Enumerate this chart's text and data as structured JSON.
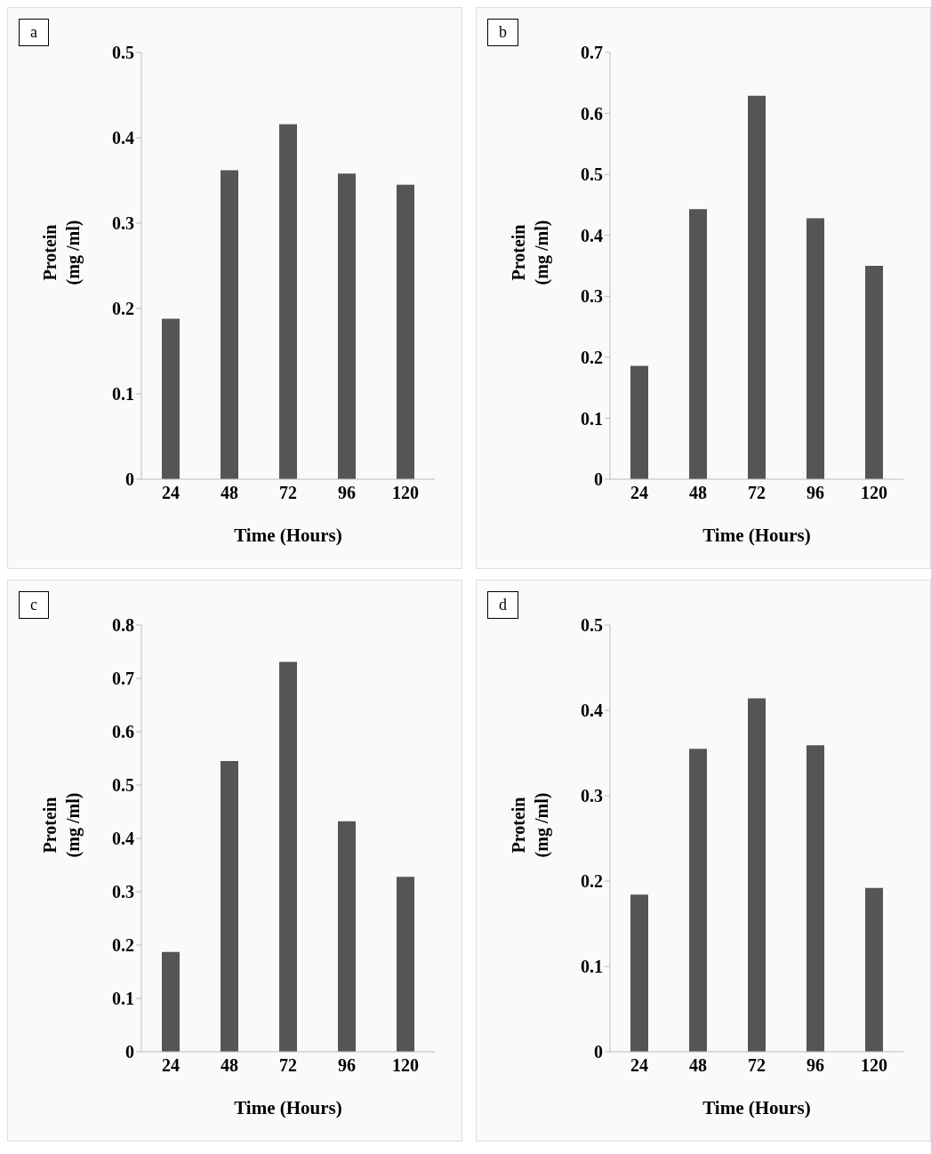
{
  "chart_data": [
    {
      "type": "bar",
      "title": "a",
      "xlabel": "Time (Hours)",
      "ylabel": "Protein (mg /ml)",
      "categories": [
        "24",
        "48",
        "72",
        "96",
        "120"
      ],
      "values": [
        0.188,
        0.362,
        0.416,
        0.358,
        0.345
      ],
      "color": "#555555",
      "ylim": [
        0,
        0.5
      ],
      "yticks": [
        0,
        0.1,
        0.2,
        0.3,
        0.4,
        0.5
      ]
    },
    {
      "type": "bar",
      "title": "b",
      "xlabel": "Time (Hours)",
      "ylabel": "Protein (mg /ml)",
      "categories": [
        "24",
        "48",
        "72",
        "96",
        "120"
      ],
      "values": [
        0.186,
        0.443,
        0.629,
        0.428,
        0.35
      ],
      "color": "#555555",
      "ylim": [
        0,
        0.7
      ],
      "yticks": [
        0,
        0.1,
        0.2,
        0.3,
        0.4,
        0.5,
        0.6,
        0.7
      ]
    },
    {
      "type": "bar",
      "title": "c",
      "xlabel": "Time (Hours)",
      "ylabel": "Protein (mg /ml)",
      "categories": [
        "24",
        "48",
        "72",
        "96",
        "120"
      ],
      "values": [
        0.187,
        0.545,
        0.731,
        0.432,
        0.328
      ],
      "color": "#555555",
      "ylim": [
        0,
        0.8
      ],
      "yticks": [
        0,
        0.1,
        0.2,
        0.3,
        0.4,
        0.5,
        0.6,
        0.7,
        0.8
      ]
    },
    {
      "type": "bar",
      "title": "d",
      "xlabel": "Time (Hours)",
      "ylabel": "Protein (mg /ml)",
      "categories": [
        "24",
        "48",
        "72",
        "96",
        "120"
      ],
      "values": [
        0.184,
        0.355,
        0.414,
        0.359,
        0.192
      ],
      "color": "#555555",
      "ylim": [
        0,
        0.5
      ],
      "yticks": [
        0,
        0.1,
        0.2,
        0.3,
        0.4,
        0.5
      ]
    }
  ]
}
